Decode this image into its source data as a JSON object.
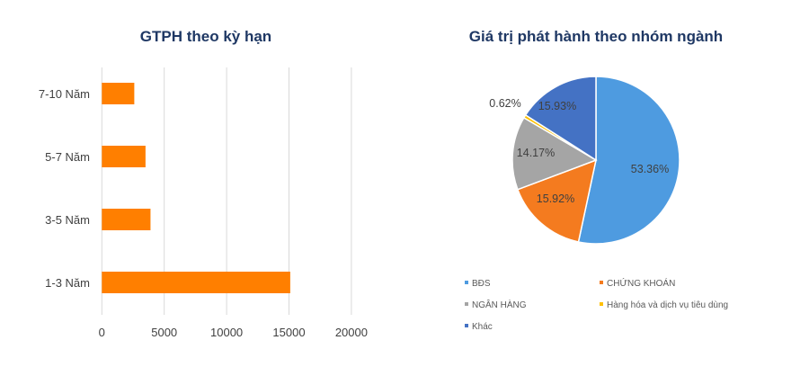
{
  "chart_data": [
    {
      "type": "bar",
      "orientation": "horizontal",
      "title": "GTPH theo kỳ hạn",
      "categories": [
        "7-10 Năm",
        "5-7 Năm",
        "3-5 Năm",
        "1-3 Năm"
      ],
      "values": [
        2600,
        3500,
        3900,
        15100
      ],
      "xlim": [
        0,
        20000
      ],
      "xticks": [
        "0",
        "5000",
        "10000",
        "15000",
        "20000"
      ],
      "grid": true,
      "color": "#ff7f00"
    },
    {
      "type": "pie",
      "title": "Giá trị phát hành theo nhóm ngành",
      "legend_position": "bottom",
      "slices": [
        {
          "name": "BĐS",
          "value": 53.36,
          "label": "53.36%",
          "color": "#4e9be0"
        },
        {
          "name": "CHỨNG KHOÁN",
          "value": 15.92,
          "label": "15.92%",
          "color": "#f47b1f"
        },
        {
          "name": "NGÂN HÀNG",
          "value": 14.17,
          "label": "14.17%",
          "color": "#a5a5a5"
        },
        {
          "name": "Hàng hóa và dịch vụ tiêu dùng",
          "value": 0.62,
          "label": "0.62%",
          "color": "#ffc000"
        },
        {
          "name": "Khác",
          "value": 15.93,
          "label": "15.93%",
          "color": "#4472c4"
        }
      ]
    }
  ]
}
